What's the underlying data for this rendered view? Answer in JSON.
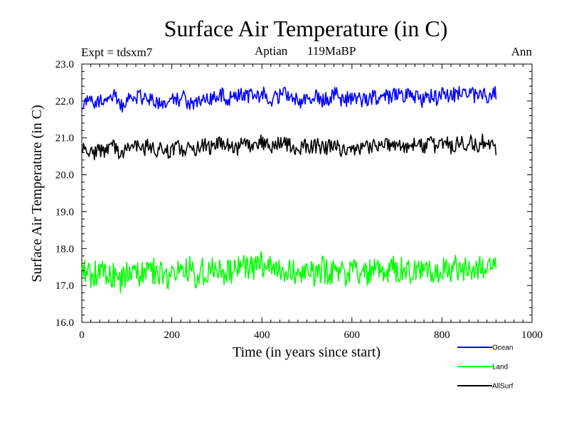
{
  "chart_data": {
    "type": "line",
    "title": "Surface Air Temperature (in C)",
    "experiment": "Expt = tdsxm7",
    "period": "Aptian",
    "age": "119MaBP",
    "season": "Ann",
    "xlabel": "Time (in years since start)",
    "ylabel": "Surface Air Temperature (in C)",
    "xlim": [
      0,
      1000
    ],
    "ylim": [
      16.0,
      23.0
    ],
    "xticks": [
      "0",
      "200",
      "400",
      "600",
      "800",
      "1000"
    ],
    "yticks": [
      "16.0",
      "17.0",
      "18.0",
      "19.0",
      "20.0",
      "21.0",
      "22.0",
      "23.0"
    ],
    "x_range": [
      0,
      920
    ],
    "series": [
      {
        "name": "Ocean",
        "color": "#0000ff",
        "values": [
          21.9,
          22.0,
          22.1,
          21.95,
          22.0,
          21.9,
          22.05,
          22.2,
          22.0,
          21.85,
          22.05,
          22.0,
          22.1,
          22.15,
          22.05,
          22.0,
          22.1,
          21.95,
          21.9,
          22.0,
          21.95,
          22.05,
          22.0,
          22.1,
          21.95,
          21.9,
          22.0,
          22.05,
          22.1,
          22.0,
          22.15,
          22.2,
          22.1,
          22.05,
          22.15,
          22.1,
          22.2,
          22.1,
          22.2,
          22.25,
          22.15,
          22.2,
          22.1,
          22.05,
          22.1,
          22.15,
          22.2,
          22.1,
          22.05,
          22.0,
          22.1,
          22.05,
          22.15,
          22.1,
          22.0,
          22.05,
          22.1,
          22.2,
          22.05,
          22.0,
          22.1,
          22.05,
          22.1,
          22.0,
          22.05,
          22.1,
          22.1,
          22.05,
          22.15,
          22.1,
          22.2,
          22.15,
          22.1,
          22.2,
          22.05,
          22.1,
          22.0,
          22.05,
          22.1,
          22.15,
          22.05,
          22.2,
          22.1,
          22.2,
          22.15,
          22.25,
          22.1,
          22.3,
          22.15,
          22.2,
          22.25,
          22.1,
          22.15,
          22.2
        ]
      },
      {
        "name": "Land",
        "color": "#00ff00",
        "values": [
          17.3,
          17.4,
          17.2,
          17.35,
          17.25,
          17.4,
          17.15,
          17.3,
          17.2,
          17.1,
          17.3,
          17.25,
          17.45,
          17.3,
          17.35,
          17.5,
          17.4,
          17.3,
          17.35,
          17.2,
          17.3,
          17.25,
          17.4,
          17.3,
          17.45,
          17.35,
          17.2,
          17.4,
          17.3,
          17.45,
          17.3,
          17.5,
          17.35,
          17.45,
          17.3,
          17.4,
          17.5,
          17.55,
          17.45,
          17.5,
          17.6,
          17.5,
          17.45,
          17.4,
          17.5,
          17.35,
          17.45,
          17.3,
          17.4,
          17.35,
          17.45,
          17.4,
          17.3,
          17.4,
          17.45,
          17.35,
          17.4,
          17.5,
          17.4,
          17.35,
          17.25,
          17.4,
          17.3,
          17.45,
          17.35,
          17.4,
          17.5,
          17.4,
          17.45,
          17.35,
          17.5,
          17.4,
          17.45,
          17.35,
          17.4,
          17.45,
          17.5,
          17.35,
          17.45,
          17.4,
          17.3,
          17.45,
          17.5,
          17.4,
          17.55,
          17.45,
          17.5,
          17.6,
          17.45,
          17.5,
          17.55,
          17.4,
          17.5,
          17.45
        ]
      },
      {
        "name": "AllSurf",
        "color": "#000000",
        "values": [
          20.6,
          20.7,
          20.65,
          20.55,
          20.7,
          20.6,
          20.65,
          20.75,
          20.6,
          20.55,
          20.65,
          20.7,
          20.8,
          20.75,
          20.7,
          20.8,
          20.7,
          20.65,
          20.7,
          20.6,
          20.65,
          20.7,
          20.75,
          20.65,
          20.7,
          20.6,
          20.7,
          20.75,
          20.8,
          20.7,
          20.8,
          20.9,
          20.75,
          20.8,
          20.75,
          20.7,
          20.85,
          20.9,
          20.8,
          20.85,
          20.95,
          20.85,
          20.8,
          20.75,
          20.85,
          20.8,
          20.85,
          20.75,
          20.7,
          20.75,
          20.8,
          20.7,
          20.75,
          20.8,
          20.7,
          20.75,
          20.8,
          20.85,
          20.7,
          20.6,
          20.65,
          20.75,
          20.7,
          20.8,
          20.75,
          20.7,
          20.8,
          20.75,
          20.85,
          20.75,
          20.8,
          20.85,
          20.75,
          20.8,
          20.75,
          20.85,
          20.8,
          20.75,
          20.85,
          20.8,
          20.7,
          20.8,
          20.85,
          20.75,
          20.85,
          20.9,
          20.8,
          20.9,
          20.85,
          20.8,
          20.9,
          20.75,
          20.8,
          20.7
        ]
      }
    ],
    "legend": [
      {
        "label": "Ocean",
        "color": "#0000ff"
      },
      {
        "label": "Land",
        "color": "#00ff00"
      },
      {
        "label": "AllSurf",
        "color": "#000000"
      }
    ]
  }
}
